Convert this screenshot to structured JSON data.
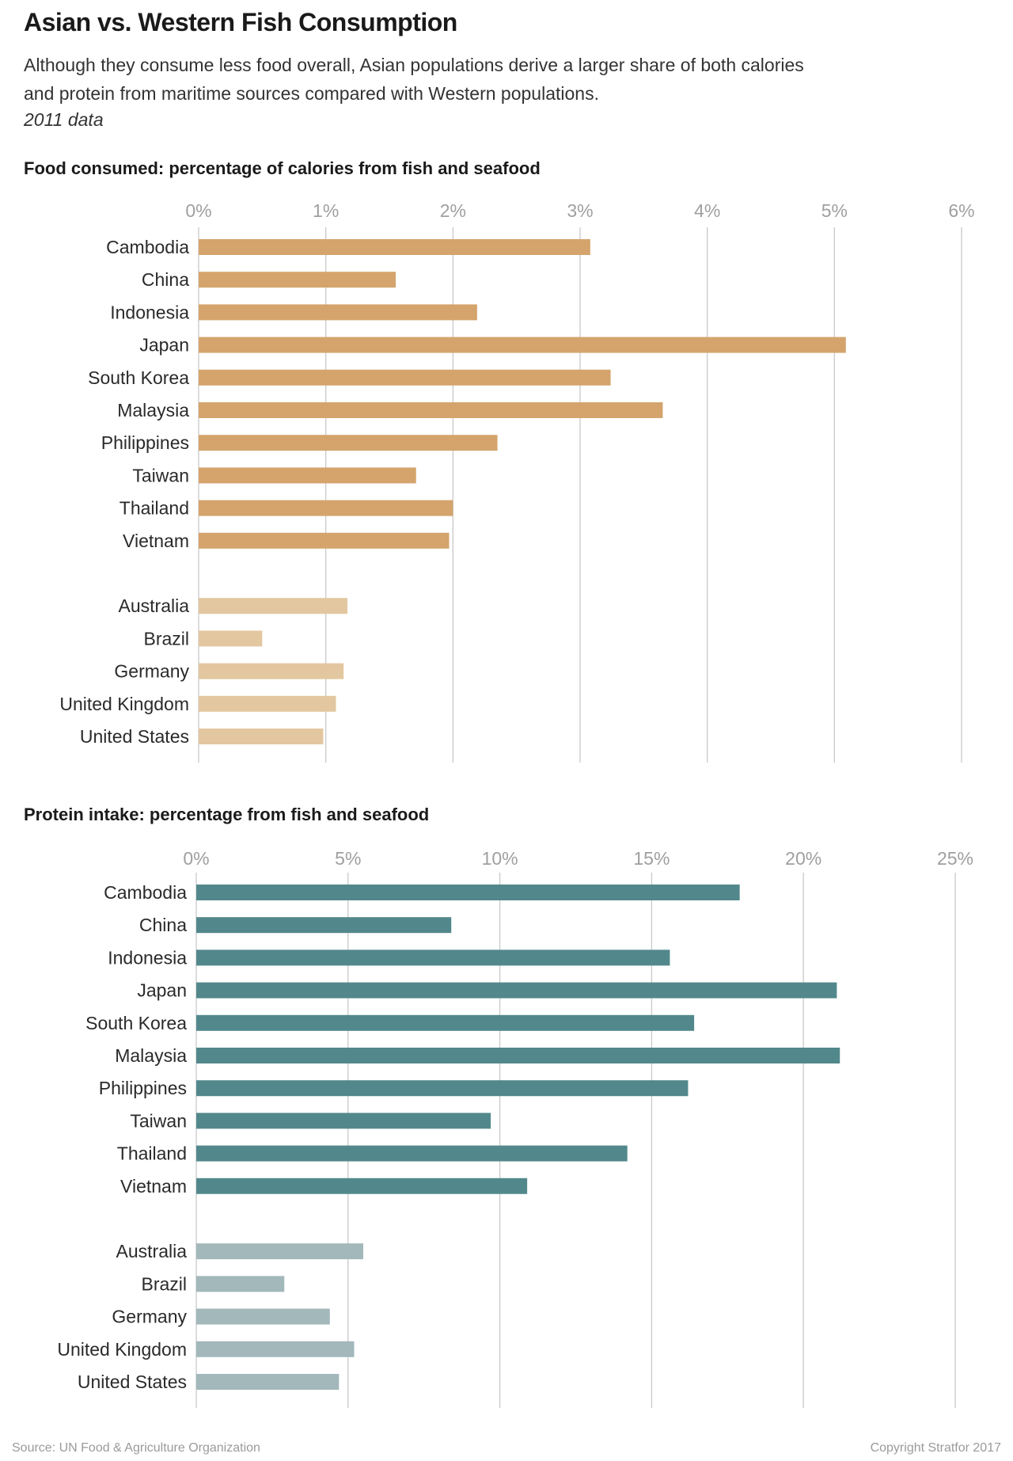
{
  "title": "Asian vs. Western Fish Consumption",
  "subtitle": "Although they consume less food overall, Asian populations derive a larger share of both calories and protein from maritime sources compared with Western populations.",
  "note": "2011 data",
  "source": "Source: UN Food & Agriculture Organization",
  "copyright": "Copyright Stratfor 2017",
  "chart_data": [
    {
      "type": "bar",
      "orientation": "horizontal",
      "title": "Food consumed: percentage of calories from fish and seafood",
      "xlim": [
        0,
        6
      ],
      "ticks": [
        0,
        1,
        2,
        3,
        4,
        5,
        6
      ],
      "tick_labels": [
        "0%",
        "1%",
        "2%",
        "3%",
        "4%",
        "5%",
        "6%"
      ],
      "grid": true,
      "categories": [
        "Cambodia",
        "China",
        "Indonesia",
        "Japan",
        "South Korea",
        "Malaysia",
        "Philippines",
        "Taiwan",
        "Thailand",
        "Vietnam",
        "Australia",
        "Brazil",
        "Germany",
        "United Kingdom",
        "United States"
      ],
      "groups": [
        "Asian",
        "Asian",
        "Asian",
        "Asian",
        "Asian",
        "Asian",
        "Asian",
        "Asian",
        "Asian",
        "Asian",
        "Western",
        "Western",
        "Western",
        "Western",
        "Western"
      ],
      "values": [
        3.08,
        1.55,
        2.19,
        5.09,
        3.24,
        3.65,
        2.35,
        1.71,
        2.0,
        1.97,
        1.17,
        0.5,
        1.14,
        1.08,
        0.98
      ],
      "colors": {
        "Asian": "#d4a46c",
        "Western": "#e3c7a0"
      }
    },
    {
      "type": "bar",
      "orientation": "horizontal",
      "title": "Protein intake: percentage from fish and seafood",
      "xlim": [
        0,
        25
      ],
      "ticks": [
        0,
        5,
        10,
        15,
        20,
        25
      ],
      "tick_labels": [
        "0%",
        "5%",
        "10%",
        "15%",
        "20%",
        "25%"
      ],
      "grid": true,
      "categories": [
        "Cambodia",
        "China",
        "Indonesia",
        "Japan",
        "South Korea",
        "Malaysia",
        "Philippines",
        "Taiwan",
        "Thailand",
        "Vietnam",
        "Australia",
        "Brazil",
        "Germany",
        "United Kingdom",
        "United States"
      ],
      "groups": [
        "Asian",
        "Asian",
        "Asian",
        "Asian",
        "Asian",
        "Asian",
        "Asian",
        "Asian",
        "Asian",
        "Asian",
        "Western",
        "Western",
        "Western",
        "Western",
        "Western"
      ],
      "values": [
        17.9,
        8.4,
        15.6,
        21.1,
        16.4,
        21.2,
        16.2,
        9.7,
        14.2,
        10.9,
        5.5,
        2.9,
        4.4,
        5.2,
        4.7
      ],
      "colors": {
        "Asian": "#52888b",
        "Western": "#a2b8bb"
      }
    }
  ]
}
